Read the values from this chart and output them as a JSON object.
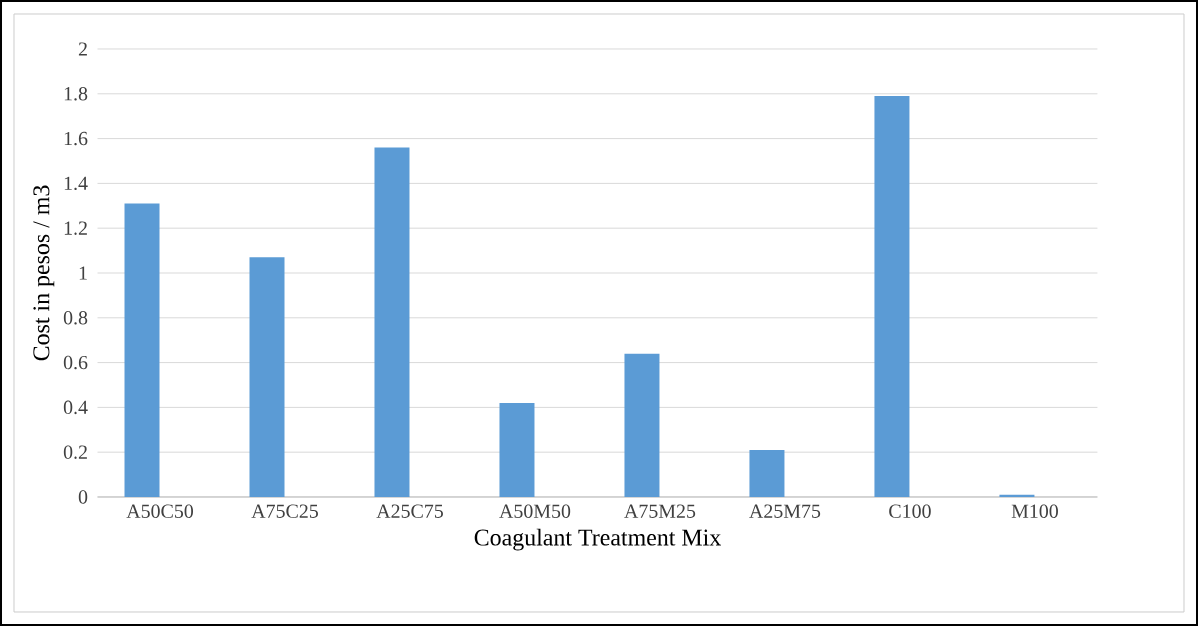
{
  "chart_data": {
    "type": "bar",
    "xlabel": "Coagulant Treatment Mix",
    "ylabel": "Cost in pesos / m3",
    "categories": [
      "A50C50",
      "A75C25",
      "A25C75",
      "A50M50",
      "A75M25",
      "A25M75",
      "C100",
      "M100"
    ],
    "values": [
      1.31,
      1.07,
      1.56,
      0.42,
      0.64,
      0.21,
      1.79,
      0.01
    ],
    "color": "#5b9bd5",
    "ylim": [
      0,
      2
    ],
    "yticks": [
      0,
      0.2,
      0.4,
      0.6,
      0.8,
      1,
      1.2,
      1.4,
      1.6,
      1.8,
      2
    ],
    "grid": "y"
  }
}
